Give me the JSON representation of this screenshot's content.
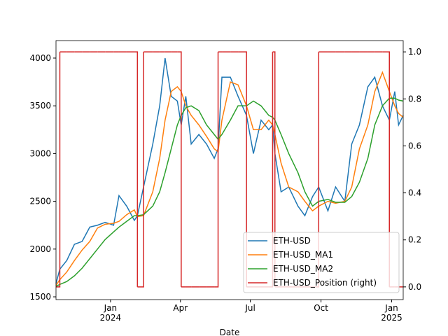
{
  "chart_data": {
    "type": "line",
    "xlabel": "Date",
    "x": [
      "2023-10-22",
      "2023-10-27",
      "2023-11-05",
      "2023-11-15",
      "2023-11-25",
      "2023-12-05",
      "2023-12-15",
      "2023-12-25",
      "2024-01-05",
      "2024-01-12",
      "2024-01-22",
      "2024-02-01",
      "2024-02-05",
      "2024-02-13",
      "2024-02-25",
      "2024-03-05",
      "2024-03-12",
      "2024-03-20",
      "2024-03-28",
      "2024-04-02",
      "2024-04-08",
      "2024-04-15",
      "2024-04-25",
      "2024-05-05",
      "2024-05-15",
      "2024-05-20",
      "2024-05-25",
      "2024-06-05",
      "2024-06-15",
      "2024-06-26",
      "2024-07-05",
      "2024-07-15",
      "2024-07-25",
      "2024-07-30",
      "2024-08-02",
      "2024-08-10",
      "2024-08-20",
      "2024-09-01",
      "2024-09-10",
      "2024-09-20",
      "2024-09-28",
      "2024-10-10",
      "2024-10-20",
      "2024-11-01",
      "2024-11-10",
      "2024-11-20",
      "2024-12-01",
      "2024-12-10",
      "2024-12-20",
      "2024-12-29",
      "2025-01-05",
      "2025-01-10",
      "2025-01-16"
    ],
    "series": [
      {
        "name": "ETH-USD",
        "color": "#1f77b4",
        "values": [
          1640,
          1790,
          1880,
          2050,
          2080,
          2230,
          2250,
          2280,
          2250,
          2560,
          2450,
          2300,
          2350,
          2650,
          3100,
          3500,
          4000,
          3600,
          3550,
          3300,
          3600,
          3100,
          3200,
          3100,
          2950,
          3050,
          3800,
          3800,
          3600,
          3400,
          3000,
          3350,
          3250,
          3300,
          3000,
          2600,
          2650,
          2450,
          2350,
          2550,
          2650,
          2400,
          2650,
          2500,
          3100,
          3300,
          3700,
          3800,
          3500,
          3350,
          3650,
          3300,
          3400
        ]
      },
      {
        "name": "ETH-USD_MA1",
        "color": "#ff7f0e",
        "values": [
          1620,
          1680,
          1760,
          1880,
          1990,
          2080,
          2220,
          2260,
          2270,
          2290,
          2360,
          2410,
          2340,
          2350,
          2600,
          2950,
          3350,
          3650,
          3700,
          3650,
          3500,
          3400,
          3300,
          3180,
          3050,
          3020,
          3350,
          3750,
          3720,
          3500,
          3250,
          3250,
          3350,
          3300,
          3200,
          2900,
          2650,
          2600,
          2500,
          2400,
          2450,
          2500,
          2480,
          2500,
          2650,
          3050,
          3300,
          3650,
          3850,
          3650,
          3500,
          3420,
          3380
        ]
      },
      {
        "name": "ETH-USD_MA2",
        "color": "#2ca02c",
        "values": [
          1610,
          1630,
          1660,
          1720,
          1800,
          1900,
          2000,
          2100,
          2180,
          2230,
          2290,
          2350,
          2350,
          2360,
          2450,
          2600,
          2800,
          3050,
          3300,
          3400,
          3480,
          3500,
          3450,
          3300,
          3200,
          3150,
          3200,
          3350,
          3500,
          3500,
          3550,
          3500,
          3400,
          3380,
          3350,
          3200,
          3000,
          2800,
          2600,
          2450,
          2500,
          2520,
          2490,
          2490,
          2550,
          2700,
          2950,
          3300,
          3500,
          3580,
          3580,
          3560,
          3550
        ]
      },
      {
        "name": "ETH-USD_Position (right)",
        "color": "#d62728",
        "axis": "y2",
        "step": "post",
        "values": [
          0,
          1,
          1,
          1,
          1,
          1,
          1,
          1,
          1,
          1,
          1,
          1,
          0,
          1,
          1,
          1,
          1,
          1,
          1,
          0,
          0,
          0,
          0,
          0,
          0,
          1,
          1,
          1,
          1,
          0,
          0,
          0,
          0,
          1,
          0,
          0,
          0,
          0,
          0,
          0,
          1,
          1,
          1,
          1,
          1,
          1,
          1,
          1,
          1,
          0,
          0,
          0,
          0
        ]
      }
    ],
    "xlim": [
      "2023-10-22",
      "2025-01-16"
    ],
    "xticks": [
      {
        "value": "2024-01-01",
        "label": "Jan\n2024"
      },
      {
        "value": "2024-04-01",
        "label": "Apr"
      },
      {
        "value": "2024-07-01",
        "label": "Jul"
      },
      {
        "value": "2024-10-01",
        "label": "Oct"
      },
      {
        "value": "2025-01-01",
        "label": "Jan\n2025"
      }
    ],
    "ylim": [
      1471,
      4183
    ],
    "yticks": [
      1500,
      2000,
      2500,
      3000,
      3500,
      4000
    ],
    "y2lim": [
      -0.054,
      1.048
    ],
    "y2ticks": [
      {
        "value": 0,
        "label": "0.0"
      },
      0.2,
      0.4,
      0.6,
      0.8,
      {
        "value": 1,
        "label": "1.0"
      }
    ],
    "legend": "lower right"
  }
}
